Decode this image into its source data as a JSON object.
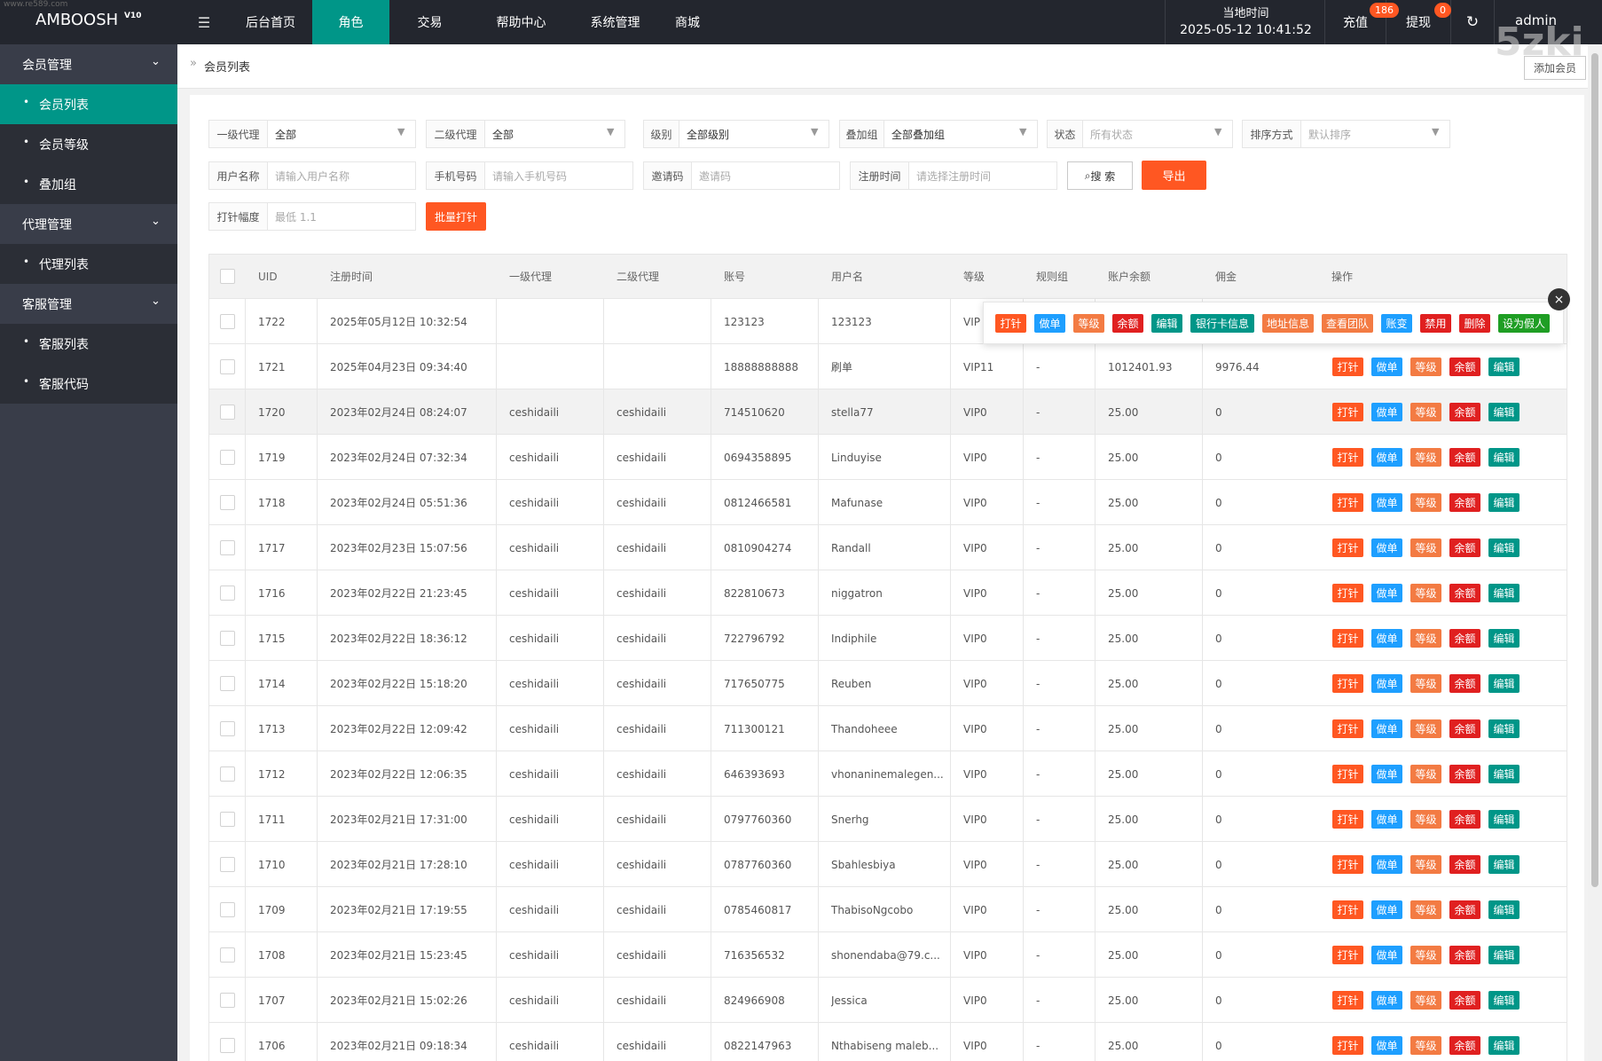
{
  "header": {
    "watermark_url": "www.re589.com",
    "brand": "AMBOOSH",
    "version": "V10",
    "nav": [
      "后台首页",
      "角色",
      "交易",
      "帮助中心",
      "系统管理",
      "商城"
    ],
    "time_label": "当地时间",
    "time": "2025-05-12 10:41:52",
    "recharge": "充值",
    "recharge_badge": "186",
    "withdraw": "提现",
    "withdraw_badge": "0",
    "user": "admin",
    "watermark": "5zki"
  },
  "sidebar": [
    {
      "label": "会员管理",
      "group": true
    },
    {
      "label": "会员列表",
      "active": true
    },
    {
      "label": "会员等级"
    },
    {
      "label": "叠加组"
    },
    {
      "label": "代理管理",
      "group": true
    },
    {
      "label": "代理列表"
    },
    {
      "label": "客服管理",
      "group": true
    },
    {
      "label": "客服列表"
    },
    {
      "label": "客服代码"
    }
  ],
  "breadcrumb": "会员列表",
  "add_button": "添加会员",
  "filters": {
    "selects": [
      {
        "label": "一级代理",
        "value": "全部"
      },
      {
        "label": "二级代理",
        "value": "全部"
      },
      {
        "label": "级别",
        "value": "全部级别"
      },
      {
        "label": "叠加组",
        "value": "全部叠加组"
      },
      {
        "label": "状态",
        "placeholder": "所有状态"
      },
      {
        "label": "排序方式",
        "placeholder": "默认排序"
      }
    ],
    "inputs": [
      {
        "label": "用户名称",
        "placeholder": "请输入用户名称"
      },
      {
        "label": "手机号码",
        "placeholder": "请输入手机号码"
      },
      {
        "label": "邀请码",
        "placeholder": "邀请码"
      },
      {
        "label": "注册时间",
        "placeholder": "请选择注册时间"
      }
    ],
    "search": "搜 索",
    "export": "导出",
    "amount": {
      "label": "打针幅度",
      "placeholder": "最低 1.1"
    },
    "batch": "批量打针"
  },
  "table": {
    "columns": [
      "UID",
      "注册时间",
      "一级代理",
      "二级代理",
      "账号",
      "用户名",
      "等级",
      "规则组",
      "账户余额",
      "佣金",
      "操作"
    ],
    "rows": [
      [
        "1722",
        "2025年05月12日 10:32:54",
        null,
        null,
        "123123",
        "123123",
        "VIP"
      ],
      [
        "1721",
        "2025年04月23日 09:34:40",
        null,
        null,
        "18888888888",
        "刷单",
        "VIP11",
        "-",
        "1012401.93",
        "9976.44"
      ],
      [
        "1720",
        "2023年02月24日 08:24:07",
        "ceshidaili",
        "ceshidaili",
        "714510620",
        "stella77",
        "VIP0",
        "-",
        "25.00",
        "0"
      ],
      [
        "1719",
        "2023年02月24日 07:32:34",
        "ceshidaili",
        "ceshidaili",
        "0694358895",
        "Linduyise",
        "VIP0",
        "-",
        "25.00",
        "0"
      ],
      [
        "1718",
        "2023年02月24日 05:51:36",
        "ceshidaili",
        "ceshidaili",
        "0812466581",
        "Mafunase",
        "VIP0",
        "-",
        "25.00",
        "0"
      ],
      [
        "1717",
        "2023年02月23日 15:07:56",
        "ceshidaili",
        "ceshidaili",
        "0810904274",
        "Randall",
        "VIP0",
        "-",
        "25.00",
        "0"
      ],
      [
        "1716",
        "2023年02月22日 21:23:45",
        "ceshidaili",
        "ceshidaili",
        "822810673",
        "niggatron",
        "VIP0",
        "-",
        "25.00",
        "0"
      ],
      [
        "1715",
        "2023年02月22日 18:36:12",
        "ceshidaili",
        "ceshidaili",
        "722796792",
        "Indiphile",
        "VIP0",
        "-",
        "25.00",
        "0"
      ],
      [
        "1714",
        "2023年02月22日 15:18:20",
        "ceshidaili",
        "ceshidaili",
        "717650775",
        "Reuben",
        "VIP0",
        "-",
        "25.00",
        "0"
      ],
      [
        "1713",
        "2023年02月22日 12:09:42",
        "ceshidaili",
        "ceshidaili",
        "711300121",
        "Thandoheee",
        "VIP0",
        "-",
        "25.00",
        "0"
      ],
      [
        "1712",
        "2023年02月22日 12:06:35",
        "ceshidaili",
        "ceshidaili",
        "646393693",
        "vhonaninemalegen...",
        "VIP0",
        "-",
        "25.00",
        "0"
      ],
      [
        "1711",
        "2023年02月21日 17:31:00",
        "ceshidaili",
        "ceshidaili",
        "0797760360",
        "Snerhg",
        "VIP0",
        "-",
        "25.00",
        "0"
      ],
      [
        "1710",
        "2023年02月21日 17:28:10",
        "ceshidaili",
        "ceshidaili",
        "0787760360",
        "Sbahlesbiya",
        "VIP0",
        "-",
        "25.00",
        "0"
      ],
      [
        "1709",
        "2023年02月21日 17:19:55",
        "ceshidaili",
        "ceshidaili",
        "0785460817",
        "ThabisoNgcobo",
        "VIP0",
        "-",
        "25.00",
        "0"
      ],
      [
        "1708",
        "2023年02月21日 15:23:45",
        "ceshidaili",
        "ceshidaili",
        "716356532",
        "shonendaba@79.c...",
        "VIP0",
        "-",
        "25.00",
        "0"
      ],
      [
        "1707",
        "2023年02月21日 15:02:26",
        "ceshidaili",
        "ceshidaili",
        "824966908",
        "Jessica",
        "VIP0",
        "-",
        "25.00",
        "0"
      ],
      [
        "1706",
        "2023年02月21日 09:18:34",
        "ceshidaili",
        "ceshidaili",
        "0822147963",
        "Nthabiseng maleb...",
        "VIP0",
        "-",
        "25.00",
        "0"
      ]
    ],
    "row_actions": [
      "打针",
      "做单",
      "等级",
      "余额",
      "编辑"
    ],
    "popup_actions": [
      "打针",
      "做单",
      "等级",
      "余额",
      "编辑",
      "银行卡信息",
      "地址信息",
      "查看团队",
      "账变",
      "禁用",
      "删除",
      "设为假人"
    ]
  }
}
